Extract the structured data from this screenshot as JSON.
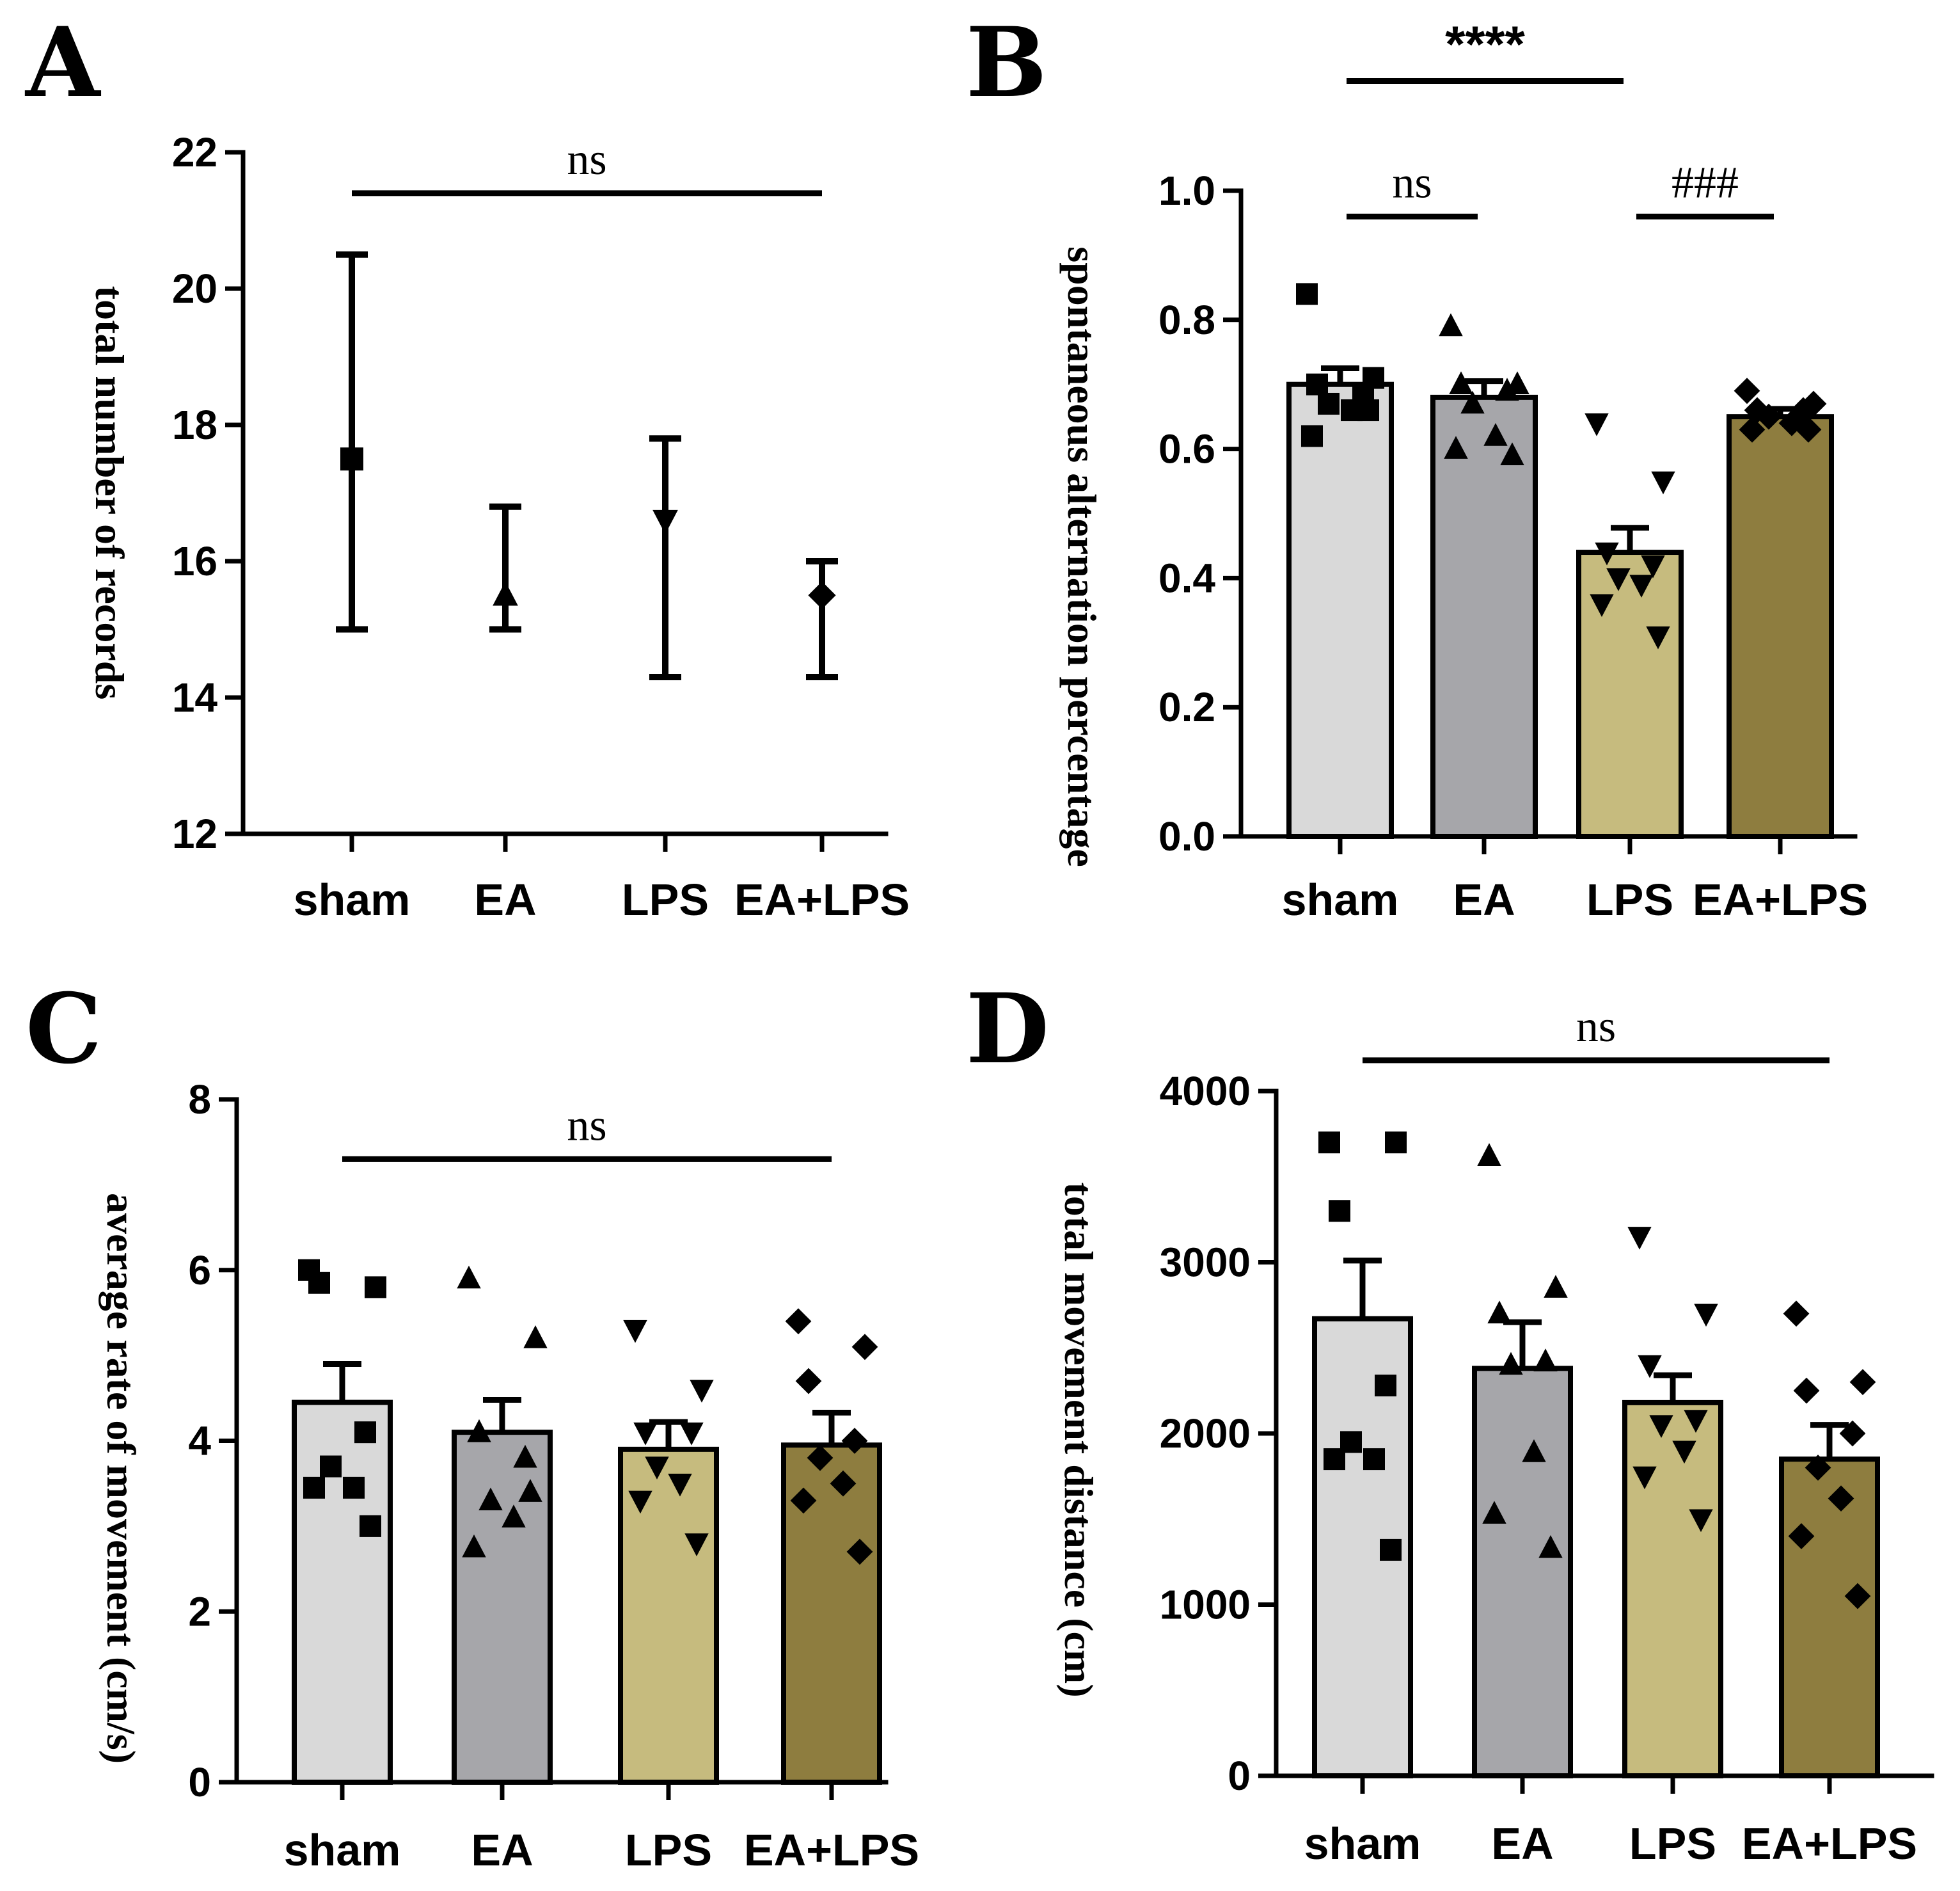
{
  "colors": {
    "sham": "#d9d9d9",
    "EA": "#a6a6aa",
    "LPS": "#c6bb7e",
    "EA+LPS": "#8e7d3f",
    "ink": "#000000"
  },
  "chart_data": [
    {
      "panel": "A",
      "type": "scatter",
      "errorbars": true,
      "categories": [
        "sham",
        "EA",
        "LPS",
        "EA+LPS"
      ],
      "ylabel": "total number of records",
      "xlabel": "",
      "ylim": [
        12,
        22
      ],
      "yticks": [
        12,
        14,
        16,
        18,
        20,
        22
      ],
      "yticklabels": [
        "12",
        "14",
        "16",
        "18",
        "20",
        "22"
      ],
      "markers": [
        "square",
        "triangle-up",
        "triangle-down",
        "diamond"
      ],
      "values": [
        17.5,
        15.5,
        16.6,
        15.5
      ],
      "err_low": [
        15.0,
        15.0,
        14.3,
        14.3
      ],
      "err_high": [
        20.5,
        16.8,
        17.8,
        16.0
      ],
      "significance": [
        {
          "from": 0,
          "to": 3,
          "label": "ns",
          "value": 21.4
        }
      ]
    },
    {
      "panel": "B",
      "type": "bar",
      "categories": [
        "sham",
        "EA",
        "LPS",
        "EA+LPS"
      ],
      "ylabel": "spontaneous alternation percentage",
      "xlabel": "",
      "ylim": [
        0,
        1.0
      ],
      "yticks": [
        0,
        0.2,
        0.4,
        0.6,
        0.8,
        1.0
      ],
      "yticklabels": [
        "0.0",
        "0.2",
        "0.4",
        "0.6",
        "0.8",
        "1.0"
      ],
      "markers": [
        "square",
        "triangle-up",
        "triangle-down",
        "diamond"
      ],
      "values": [
        0.7,
        0.68,
        0.44,
        0.65
      ],
      "sem": [
        0.025,
        0.025,
        0.038,
        0.012
      ],
      "points": [
        [
          0.84,
          0.71,
          0.7,
          0.68,
          0.67,
          0.66,
          0.62,
          0.66
        ],
        [
          0.79,
          0.7,
          0.7,
          0.69,
          0.67,
          0.62,
          0.6,
          0.59
        ],
        [
          0.64,
          0.55,
          0.44,
          0.42,
          0.4,
          0.39,
          0.36,
          0.31
        ],
        [
          0.69,
          0.67,
          0.66,
          0.66,
          0.65,
          0.64,
          0.63,
          0.63
        ]
      ],
      "significance": [
        {
          "from": 0,
          "to": 2,
          "label": "****",
          "value": 1.17
        },
        {
          "from": 0,
          "to": 1,
          "label": "ns",
          "value": 0.96
        },
        {
          "from": 2,
          "to": 3,
          "label": "###",
          "value": 0.96
        }
      ]
    },
    {
      "panel": "C",
      "type": "bar",
      "categories": [
        "sham",
        "EA",
        "LPS",
        "EA+LPS"
      ],
      "ylabel": "average rate of movement (cm/s)",
      "xlabel": "",
      "ylim": [
        0,
        8
      ],
      "yticks": [
        0,
        2,
        4,
        6,
        8
      ],
      "yticklabels": [
        "0",
        "2",
        "4",
        "6",
        "8"
      ],
      "markers": [
        "square",
        "triangle-up",
        "triangle-down",
        "diamond"
      ],
      "values": [
        4.45,
        4.1,
        3.9,
        3.95
      ],
      "sem": [
        0.45,
        0.38,
        0.32,
        0.38
      ],
      "points": [
        [
          6.0,
          5.8,
          5.85,
          4.1,
          3.7,
          3.45,
          3.45,
          3.0
        ],
        [
          5.9,
          5.2,
          4.1,
          3.8,
          3.3,
          3.1,
          2.75,
          3.4
        ],
        [
          5.3,
          4.6,
          4.1,
          4.1,
          3.7,
          3.5,
          3.3,
          2.8
        ],
        [
          5.4,
          5.1,
          4.7,
          4.0,
          3.8,
          3.5,
          3.3,
          2.7
        ]
      ],
      "significance": [
        {
          "from": 0,
          "to": 3,
          "label": "ns",
          "value": 7.3
        }
      ]
    },
    {
      "panel": "D",
      "type": "bar",
      "categories": [
        "sham",
        "EA",
        "LPS",
        "EA+LPS"
      ],
      "ylabel": "total movement distance (cm)",
      "xlabel": "",
      "ylim": [
        0,
        4000
      ],
      "yticks": [
        0,
        1000,
        2000,
        3000,
        4000
      ],
      "yticklabels": [
        "0",
        "1000",
        "2000",
        "3000",
        "4000"
      ],
      "markers": [
        "square",
        "triangle-up",
        "triangle-down",
        "diamond"
      ],
      "values": [
        2670,
        2380,
        2180,
        1850
      ],
      "sem": [
        340,
        270,
        160,
        200
      ],
      "points": [
        [
          3700,
          3700,
          3300,
          2280,
          1950,
          1850,
          1850,
          1320
        ],
        [
          3620,
          2850,
          2700,
          2420,
          2400,
          1890,
          1530,
          1330
        ],
        [
          3150,
          2700,
          2400,
          2080,
          2050,
          1900,
          1750,
          1500
        ],
        [
          2700,
          2300,
          2250,
          2000,
          1800,
          1620,
          1400,
          1050
        ]
      ],
      "significance": [
        {
          "from": 0,
          "to": 3,
          "label": "ns",
          "value": 4180
        }
      ]
    }
  ]
}
